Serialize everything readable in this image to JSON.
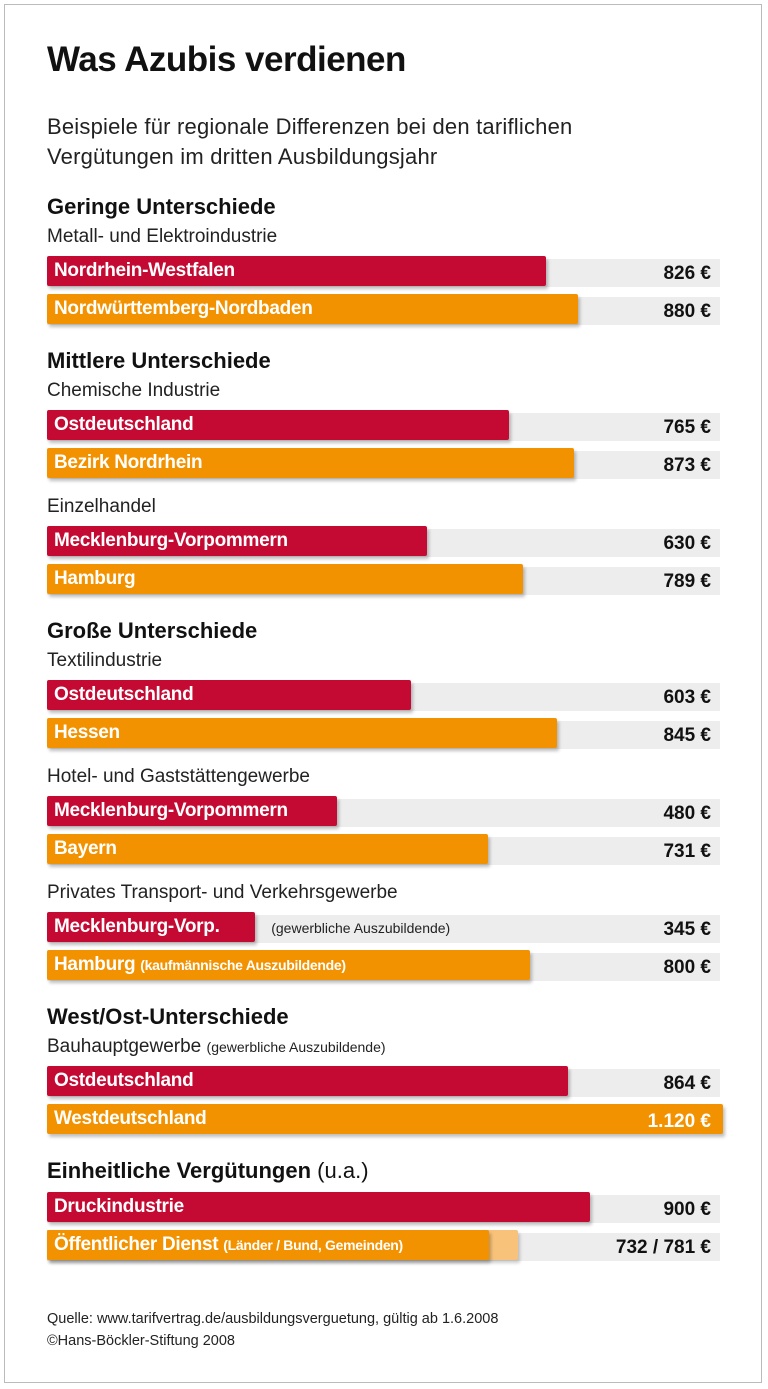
{
  "title": "Was Azubis verdienen",
  "subtitle_lines": [
    "Beispiele für regionale Differenzen bei den tariflichen",
    "Vergütungen im dritten Ausbildungsjahr"
  ],
  "colors": {
    "red": "#c40a32",
    "orange": "#f39200",
    "light_orange": "#f8c27a",
    "track": "#ededed"
  },
  "chart_data": {
    "type": "bar",
    "orientation": "horizontal",
    "unit": "€",
    "xlim": [
      0,
      1120
    ],
    "sections": [
      {
        "title": "Geringe Unterschiede",
        "extra": "",
        "groups": [
          {
            "title": "Metall- und Elektroindustrie",
            "note": "",
            "bars": [
              {
                "label": "Nordrhein-Westfalen",
                "value": 826,
                "value_label": "826 €",
                "color": "red"
              },
              {
                "label": "Nordwürttemberg-Nordbaden",
                "value": 880,
                "value_label": "880 €",
                "color": "orange"
              }
            ]
          }
        ]
      },
      {
        "title": "Mittlere Unterschiede",
        "extra": "",
        "groups": [
          {
            "title": "Chemische Industrie",
            "note": "",
            "bars": [
              {
                "label": "Ostdeutschland",
                "value": 765,
                "value_label": "765 €",
                "color": "red"
              },
              {
                "label": "Bezirk Nordrhein",
                "value": 873,
                "value_label": "873 €",
                "color": "orange"
              }
            ]
          },
          {
            "title": "Einzelhandel",
            "note": "",
            "bars": [
              {
                "label": "Mecklenburg-Vorpommern",
                "value": 630,
                "value_label": "630 €",
                "color": "red"
              },
              {
                "label": "Hamburg",
                "value": 789,
                "value_label": "789 €",
                "color": "orange"
              }
            ]
          }
        ]
      },
      {
        "title": "Große Unterschiede",
        "extra": "",
        "groups": [
          {
            "title": "Textilindustrie",
            "note": "",
            "bars": [
              {
                "label": "Ostdeutschland",
                "value": 603,
                "value_label": "603 €",
                "color": "red"
              },
              {
                "label": "Hessen",
                "value": 845,
                "value_label": "845 €",
                "color": "orange"
              }
            ]
          },
          {
            "title": "Hotel- und Gaststättengewerbe",
            "note": "",
            "bars": [
              {
                "label": "Mecklenburg-Vorpommern",
                "value": 480,
                "value_label": "480 €",
                "color": "red"
              },
              {
                "label": "Bayern",
                "value": 731,
                "value_label": "731 €",
                "color": "orange"
              }
            ]
          },
          {
            "title": "Privates Transport- und Verkehrsgewerbe",
            "note": "",
            "bars": [
              {
                "label": "Mecklenburg-Vorp.",
                "outer_note": "(gewerbliche Auszubildende)",
                "value": 345,
                "value_label": "345 €",
                "color": "red"
              },
              {
                "label": "Hamburg",
                "inner_note": "(kaufmännische Auszubildende)",
                "value": 800,
                "value_label": "800 €",
                "color": "orange"
              }
            ]
          }
        ]
      },
      {
        "title": "West/Ost-Unterschiede",
        "extra": "",
        "groups": [
          {
            "title": "Bauhauptgewerbe",
            "note": "(gewerbliche Auszubildende)",
            "bars": [
              {
                "label": "Ostdeutschland",
                "value": 864,
                "value_label": "864 €",
                "color": "red"
              },
              {
                "label": "Westdeutschland",
                "value": 1120,
                "value_label": "1.120 €",
                "color": "orange"
              }
            ]
          }
        ]
      },
      {
        "title": "Einheitliche Vergütungen",
        "extra": "(u.a.)",
        "groups": [
          {
            "title": "",
            "note": "",
            "bars": [
              {
                "label": "Druckindustrie",
                "value": 900,
                "value_label": "900 €",
                "color": "red"
              },
              {
                "label": "Öffentlicher Dienst",
                "inner_note": "(Länder / Bund, Gemeinden)",
                "value": 732,
                "value2": 781,
                "value_label": "732 / 781 €",
                "color": "orange"
              }
            ]
          }
        ]
      }
    ]
  },
  "footer": {
    "source": "Quelle: www.tarifvertrag.de/ausbildungsverguetung, gültig ab 1.6.2008",
    "copyright": "©Hans-Böckler-Stiftung 2008"
  }
}
